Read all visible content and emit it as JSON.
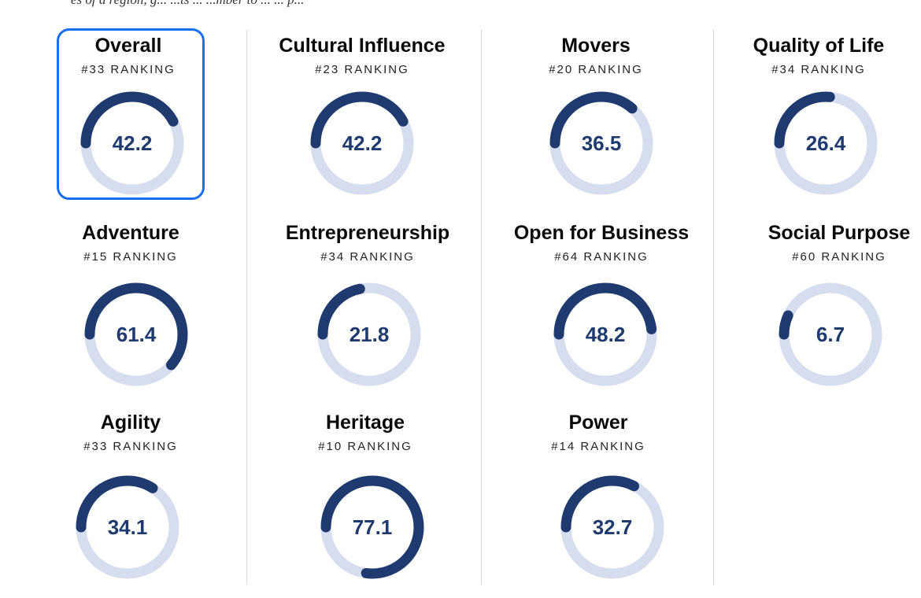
{
  "header_fragment": "es of a region, g... ...ts ... ...mber to ... ... p...",
  "colors": {
    "arc": "#1e3a6e",
    "track": "#d6ddef",
    "selected_border": "#1a6ef0"
  },
  "ranking_suffix": "RANKING",
  "metrics": [
    {
      "id": "overall",
      "title": "Overall",
      "rank": "#33 RANKING",
      "value": "42.2",
      "score": 42.2,
      "selected": true
    },
    {
      "id": "cultural-influence",
      "title": "Cultural Influence",
      "rank": "#23 RANKING",
      "value": "42.2",
      "score": 42.2,
      "selected": false
    },
    {
      "id": "movers",
      "title": "Movers",
      "rank": "#20 RANKING",
      "value": "36.5",
      "score": 36.5,
      "selected": false
    },
    {
      "id": "quality-of-life",
      "title": "Quality of Life",
      "rank": "#34 RANKING",
      "value": "26.4",
      "score": 26.4,
      "selected": false
    },
    {
      "id": "adventure",
      "title": "Adventure",
      "rank": "#15 RANKING",
      "value": "61.4",
      "score": 61.4,
      "selected": false
    },
    {
      "id": "entrepreneurship",
      "title": "Entrepreneurship",
      "rank": "#34 RANKING",
      "value": "21.8",
      "score": 21.8,
      "selected": false
    },
    {
      "id": "open-for-business",
      "title": "Open for Business",
      "rank": "#64 RANKING",
      "value": "48.2",
      "score": 48.2,
      "selected": false
    },
    {
      "id": "social-purpose",
      "title": "Social Purpose",
      "rank": "#60 RANKING",
      "value": "6.7",
      "score": 6.7,
      "selected": false
    },
    {
      "id": "agility",
      "title": "Agility",
      "rank": "#33 RANKING",
      "value": "34.1",
      "score": 34.1,
      "selected": false
    },
    {
      "id": "heritage",
      "title": "Heritage",
      "rank": "#10 RANKING",
      "value": "77.1",
      "score": 77.1,
      "selected": false
    },
    {
      "id": "power",
      "title": "Power",
      "rank": "#14 RANKING",
      "value": "32.7",
      "score": 32.7,
      "selected": false
    }
  ]
}
